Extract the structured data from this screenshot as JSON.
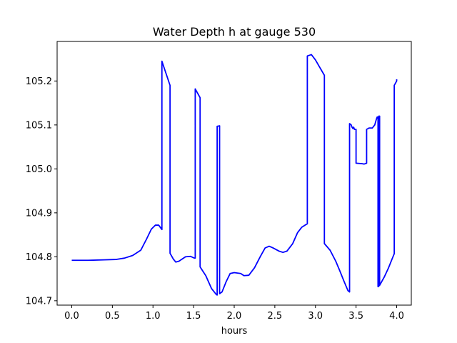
{
  "chart_data": {
    "type": "line",
    "title": "Water Depth h at gauge 530",
    "xlabel": "hours",
    "ylabel": "",
    "xlim": [
      -0.18,
      4.18
    ],
    "ylim": [
      104.69,
      105.29
    ],
    "xticks": [
      0.0,
      0.5,
      1.0,
      1.5,
      2.0,
      2.5,
      3.0,
      3.5,
      4.0
    ],
    "xtick_labels": [
      "0.0",
      "0.5",
      "1.0",
      "1.5",
      "2.0",
      "2.5",
      "3.0",
      "3.5",
      "4.0"
    ],
    "yticks": [
      104.7,
      104.8,
      104.9,
      105.0,
      105.1,
      105.2
    ],
    "ytick_labels": [
      "104.7",
      "104.8",
      "104.9",
      "105.0",
      "105.1",
      "105.2"
    ],
    "grid": false,
    "series": [
      {
        "color": "#0000ff",
        "points": [
          [
            0.0,
            104.792
          ],
          [
            0.2,
            104.792
          ],
          [
            0.4,
            104.793
          ],
          [
            0.55,
            104.794
          ],
          [
            0.65,
            104.797
          ],
          [
            0.75,
            104.803
          ],
          [
            0.85,
            104.815
          ],
          [
            0.92,
            104.84
          ],
          [
            0.98,
            104.863
          ],
          [
            1.03,
            104.872
          ],
          [
            1.07,
            104.872
          ],
          [
            1.11,
            104.862
          ],
          [
            1.11,
            105.245
          ],
          [
            1.21,
            105.19
          ],
          [
            1.21,
            104.808
          ],
          [
            1.25,
            104.795
          ],
          [
            1.28,
            104.788
          ],
          [
            1.32,
            104.79
          ],
          [
            1.4,
            104.8
          ],
          [
            1.46,
            104.801
          ],
          [
            1.51,
            104.797
          ],
          [
            1.52,
            104.797
          ],
          [
            1.52,
            105.182
          ],
          [
            1.58,
            105.162
          ],
          [
            1.58,
            104.777
          ],
          [
            1.65,
            104.757
          ],
          [
            1.72,
            104.728
          ],
          [
            1.78,
            104.714
          ],
          [
            1.79,
            104.713
          ],
          [
            1.79,
            105.097
          ],
          [
            1.82,
            105.098
          ],
          [
            1.82,
            104.716
          ],
          [
            1.85,
            104.72
          ],
          [
            1.9,
            104.743
          ],
          [
            1.95,
            104.762
          ],
          [
            2.0,
            104.764
          ],
          [
            2.08,
            104.762
          ],
          [
            2.12,
            104.757
          ],
          [
            2.18,
            104.758
          ],
          [
            2.25,
            104.775
          ],
          [
            2.32,
            104.8
          ],
          [
            2.38,
            104.82
          ],
          [
            2.43,
            104.824
          ],
          [
            2.48,
            104.82
          ],
          [
            2.55,
            104.813
          ],
          [
            2.6,
            104.81
          ],
          [
            2.65,
            104.813
          ],
          [
            2.72,
            104.83
          ],
          [
            2.78,
            104.855
          ],
          [
            2.83,
            104.867
          ],
          [
            2.88,
            104.873
          ],
          [
            2.9,
            104.875
          ],
          [
            2.9,
            105.257
          ],
          [
            2.95,
            105.26
          ],
          [
            3.0,
            105.248
          ],
          [
            3.05,
            105.232
          ],
          [
            3.11,
            105.213
          ],
          [
            3.11,
            104.83
          ],
          [
            3.18,
            104.815
          ],
          [
            3.25,
            104.79
          ],
          [
            3.3,
            104.768
          ],
          [
            3.35,
            104.745
          ],
          [
            3.4,
            104.723
          ],
          [
            3.42,
            104.72
          ],
          [
            3.42,
            105.103
          ],
          [
            3.44,
            105.1
          ],
          [
            3.45,
            105.095
          ],
          [
            3.46,
            105.092
          ],
          [
            3.47,
            105.095
          ],
          [
            3.48,
            105.09
          ],
          [
            3.5,
            105.09
          ],
          [
            3.5,
            105.013
          ],
          [
            3.57,
            105.012
          ],
          [
            3.6,
            105.011
          ],
          [
            3.63,
            105.013
          ],
          [
            3.63,
            105.09
          ],
          [
            3.66,
            105.093
          ],
          [
            3.7,
            105.093
          ],
          [
            3.73,
            105.1
          ],
          [
            3.75,
            105.113
          ],
          [
            3.76,
            105.118
          ],
          [
            3.77,
            105.118
          ],
          [
            3.77,
            104.732
          ],
          [
            3.78,
            104.733
          ],
          [
            3.78,
            105.12
          ],
          [
            3.79,
            105.12
          ],
          [
            3.79,
            104.735
          ],
          [
            3.85,
            104.755
          ],
          [
            3.9,
            104.775
          ],
          [
            3.95,
            104.798
          ],
          [
            3.97,
            104.807
          ],
          [
            3.97,
            105.19
          ],
          [
            4.0,
            105.2
          ],
          [
            4.0,
            105.204
          ]
        ]
      }
    ]
  }
}
